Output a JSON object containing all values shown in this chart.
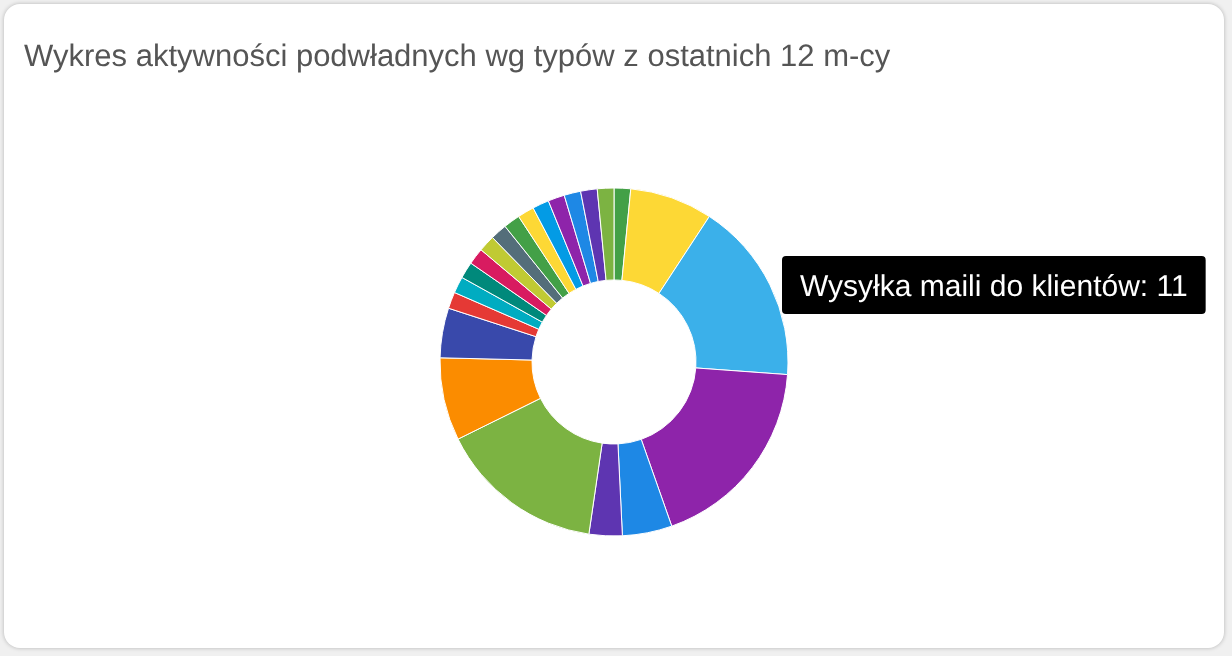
{
  "chart_data": {
    "type": "donut",
    "title": "Wykres aktywności podwładnych wg typów z ostatnich 12 m-cy",
    "categories": [
      null,
      null,
      "Wysyłka maili do klientów",
      null,
      null,
      null,
      null,
      null,
      null,
      null,
      null,
      null,
      null,
      null,
      null,
      null,
      null,
      null,
      null,
      null,
      null,
      null
    ],
    "values": [
      1,
      5,
      11,
      12,
      3,
      2,
      10,
      5,
      3,
      1,
      1,
      1,
      1,
      1,
      1,
      1,
      1,
      1,
      1,
      1,
      1,
      1
    ],
    "value_labels": [
      null,
      null,
      "11",
      null,
      null,
      null,
      null,
      null,
      null,
      null,
      null,
      null,
      null,
      null,
      null,
      null,
      null,
      null,
      null,
      null,
      null,
      null
    ],
    "colors": [
      "#43a047",
      "#fdd835",
      "#3bb0ea",
      "#8e24aa",
      "#1e88e5",
      "#5e35b1",
      "#7cb342",
      "#fb8c00",
      "#3949ab",
      "#e53935",
      "#00acc1",
      "#00897b",
      "#d81b60",
      "#c0ca33",
      "#546e7a",
      "#43a047",
      "#fdd835",
      "#039be5",
      "#8e24aa",
      "#1e88e5",
      "#5e35b1",
      "#7cb342"
    ],
    "legend": false
  }
}
